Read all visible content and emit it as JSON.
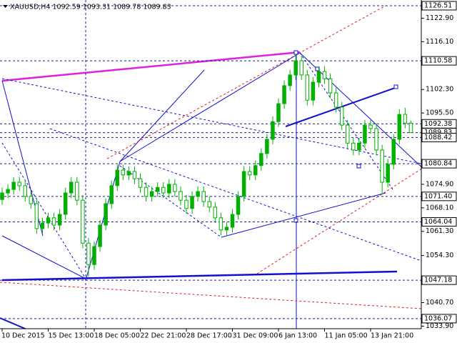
{
  "chart_data": {
    "type": "candlestick",
    "title": "XAUUSD,H4  1092.59 1093.31 1089.78 1089.83",
    "categories": [
      "10 Dec 2015",
      null,
      null,
      null,
      null,
      null,
      null,
      null,
      "15 Dec 13:00",
      null,
      null,
      null,
      null,
      null,
      null,
      null,
      "18 Dec 05:00",
      null,
      null,
      null,
      null,
      null,
      null,
      null,
      "22 Dec 21:00",
      null,
      null,
      null,
      null,
      null,
      null,
      null,
      "28 Dec 17:00",
      null,
      null,
      null,
      null,
      null,
      null,
      null,
      "31 Dec 09:00",
      null,
      null,
      null,
      null,
      null,
      null,
      null,
      "6 Jan 13:00",
      null,
      null,
      null,
      null,
      null,
      null,
      null,
      "11 Jan 05:00",
      null,
      null,
      null,
      null,
      null,
      null,
      null,
      "13 Jan 21:00",
      null,
      null,
      null,
      null,
      null,
      null,
      null
    ],
    "open": [
      1070.5,
      1072.4,
      1073.4,
      1075.5,
      1074.5,
      1071.4,
      1069.3,
      1062.1,
      1063.7,
      1065.2,
      1063.1,
      1066.2,
      1072.4,
      1075.5,
      1070.3,
      1057.9,
      1051.7,
      1056.9,
      1063.1,
      1069.3,
      1074.5,
      1079.0,
      1077.6,
      1078.6,
      1076.5,
      1074.0,
      1071.4,
      1072.8,
      1074.0,
      1072.4,
      1074.9,
      1072.8,
      1070.3,
      1067.9,
      1071.4,
      1072.8,
      1069.9,
      1068.3,
      1065.2,
      1061.7,
      1062.5,
      1066.2,
      1071.4,
      1078.6,
      1077.6,
      1080.3,
      1083.8,
      1087.9,
      1093.0,
      1098.2,
      1103.4,
      1106.5,
      1110.6,
      1106.5,
      1099.2,
      1104.4,
      1107.5,
      1105.4,
      1101.3,
      1097.2,
      1092.0,
      1086.8,
      1084.8,
      1086.8,
      1092.0,
      1091.0,
      1084.8,
      1075.5,
      1080.7,
      1087.9,
      1095.1,
      1092.59
    ],
    "high": [
      1073.9,
      1074.9,
      1077.0,
      1077.0,
      1076.0,
      1072.9,
      1070.8,
      1065.2,
      1066.7,
      1066.7,
      1067.7,
      1073.9,
      1077.0,
      1077.0,
      1071.8,
      1059.4,
      1058.4,
      1064.6,
      1070.8,
      1076.0,
      1080.5,
      1080.5,
      1080.1,
      1080.1,
      1078.0,
      1075.5,
      1074.3,
      1075.5,
      1075.5,
      1076.4,
      1076.4,
      1074.3,
      1071.8,
      1072.9,
      1074.3,
      1074.3,
      1071.4,
      1069.8,
      1066.7,
      1064.0,
      1067.7,
      1072.9,
      1080.1,
      1080.1,
      1081.8,
      1085.3,
      1089.4,
      1094.5,
      1099.7,
      1104.9,
      1108.0,
      1112.6,
      1112.1,
      1108.0,
      1105.9,
      1109.0,
      1109.0,
      1106.9,
      1102.8,
      1098.7,
      1093.5,
      1088.3,
      1088.3,
      1093.5,
      1093.5,
      1092.5,
      1086.3,
      1082.2,
      1089.4,
      1096.6,
      1097.0,
      1093.31
    ],
    "low": [
      1069.0,
      1070.9,
      1071.9,
      1073.0,
      1069.9,
      1067.8,
      1060.6,
      1060.6,
      1062.2,
      1061.6,
      1061.6,
      1064.7,
      1070.9,
      1068.8,
      1056.4,
      1048.2,
      1050.2,
      1055.4,
      1061.6,
      1067.8,
      1073.0,
      1076.1,
      1076.1,
      1075.0,
      1072.5,
      1069.9,
      1069.9,
      1071.3,
      1070.9,
      1070.9,
      1071.3,
      1068.8,
      1066.4,
      1066.4,
      1069.9,
      1068.4,
      1066.8,
      1063.7,
      1060.2,
      1060.2,
      1061.0,
      1064.7,
      1069.9,
      1076.1,
      1076.1,
      1078.8,
      1082.3,
      1086.4,
      1091.5,
      1096.7,
      1101.9,
      1105.0,
      1105.0,
      1097.7,
      1097.7,
      1102.9,
      1103.9,
      1099.8,
      1095.7,
      1090.5,
      1085.3,
      1083.3,
      1083.3,
      1085.3,
      1089.5,
      1083.3,
      1072.0,
      1074.0,
      1079.2,
      1086.4,
      1091.1,
      1089.78
    ],
    "close": [
      1072.4,
      1073.4,
      1075.5,
      1074.5,
      1071.4,
      1069.3,
      1062.1,
      1063.7,
      1065.2,
      1063.1,
      1066.2,
      1072.4,
      1075.5,
      1070.3,
      1057.9,
      1051.7,
      1056.9,
      1063.1,
      1069.3,
      1074.5,
      1079.0,
      1077.6,
      1078.6,
      1076.5,
      1074.0,
      1071.4,
      1072.8,
      1074.0,
      1072.4,
      1074.9,
      1072.8,
      1070.3,
      1067.9,
      1071.4,
      1072.8,
      1069.9,
      1068.3,
      1065.2,
      1061.7,
      1062.5,
      1066.2,
      1071.4,
      1078.6,
      1077.6,
      1080.3,
      1083.8,
      1087.9,
      1093.0,
      1098.2,
      1103.4,
      1106.5,
      1110.6,
      1106.5,
      1099.2,
      1104.4,
      1107.5,
      1105.4,
      1101.3,
      1097.2,
      1092.0,
      1086.8,
      1084.8,
      1086.8,
      1092.0,
      1091.0,
      1084.8,
      1075.5,
      1080.7,
      1087.9,
      1095.1,
      1092.59,
      1089.83
    ],
    "color": "#00b000",
    "ylim": [
      1033.16,
      1128.16
    ],
    "yticks": [
      {
        "value": 1122.9,
        "label": "1122.90"
      },
      {
        "value": 1116.1,
        "label": "1116.10"
      },
      {
        "value": 1102.3,
        "label": "1102.30"
      },
      {
        "value": 1095.5,
        "label": "1095.50"
      },
      {
        "value": 1074.9,
        "label": "1074.90"
      },
      {
        "value": 1068.1,
        "label": "1068.10"
      },
      {
        "value": 1061.3,
        "label": "1061.30"
      },
      {
        "value": 1054.3,
        "label": "1054.30"
      },
      {
        "value": 1040.7,
        "label": "1040.70"
      },
      {
        "value": 1033.9,
        "label": "1033.90"
      }
    ],
    "levels": [
      1126.51,
      1110.58,
      1092.38,
      1089.83,
      1088.42,
      1080.84,
      {
        "value": 1071.4,
        "label": "1071.40"
      },
      1064.04,
      1047.18,
      1036.07
    ],
    "level_color": "#1c1c8c"
  }
}
